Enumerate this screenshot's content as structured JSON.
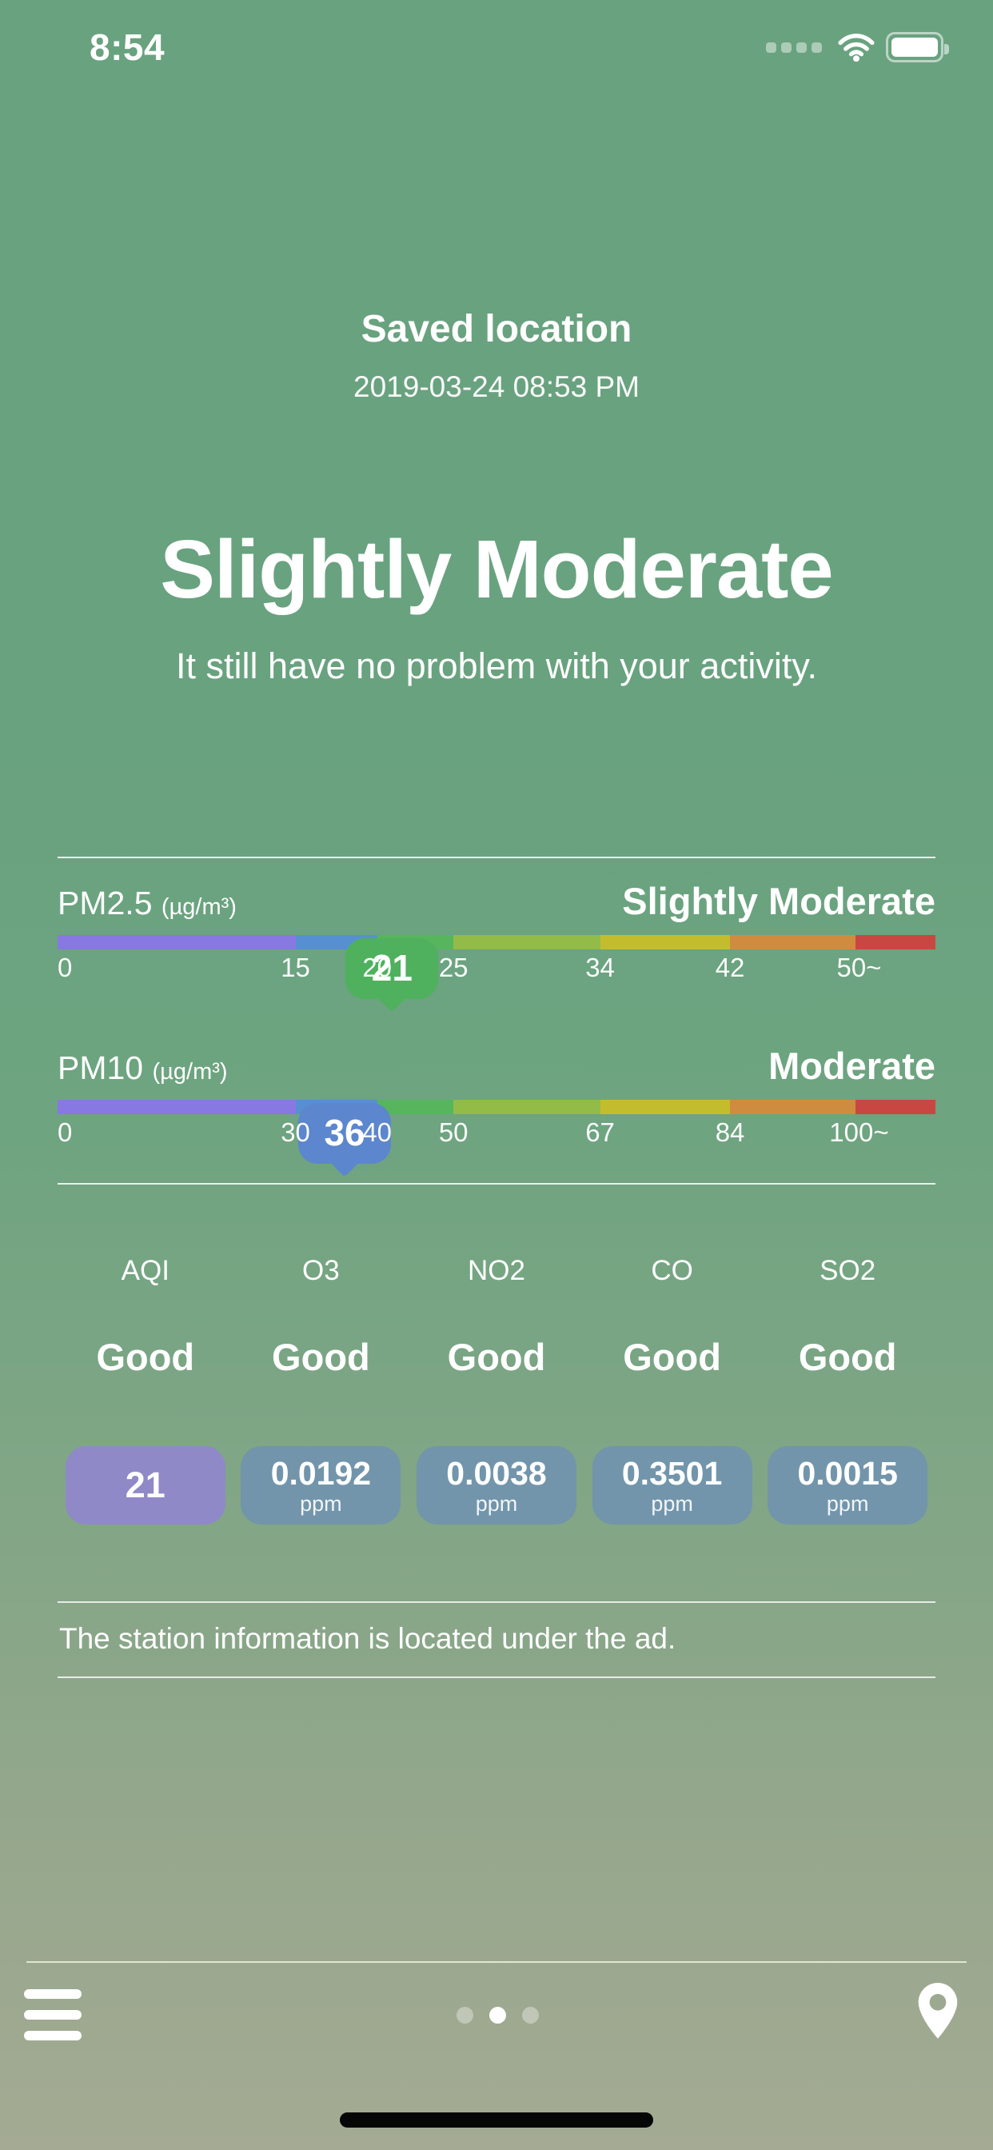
{
  "status_bar": {
    "time": "8:54"
  },
  "header": {
    "title": "Saved location",
    "timestamp": "2019-03-24 08:53 PM"
  },
  "summary": {
    "level": "Slightly Moderate",
    "message": "It still have no problem with your activity."
  },
  "colors": {
    "background_top": "#69a27f",
    "background_bottom": "#a4aa93",
    "divider": "#ffffff",
    "aqi_pill": "#8f89c8",
    "value_pill": "#7295ab",
    "pm25_badge": "#4fb15e",
    "pm10_badge": "#5c86cd",
    "home_indicator": "#060606"
  },
  "gauges": [
    {
      "label": "PM2.5",
      "unit": "(µg/m³)",
      "status": "Slightly Moderate",
      "value": "21",
      "badge_color": "#4fb15e",
      "badge_percent": 38.1,
      "segments": [
        {
          "color": "#8878e2",
          "percent": 27.1
        },
        {
          "color": "#578fd3",
          "percent": 9.3
        },
        {
          "color": "#57b55e",
          "percent": 8.7
        },
        {
          "color": "#92bb47",
          "percent": 16.7
        },
        {
          "color": "#c3bd2e",
          "percent": 14.8
        },
        {
          "color": "#d08c3e",
          "percent": 14.3
        },
        {
          "color": "#c94743",
          "percent": 9.1
        }
      ],
      "ticks": [
        {
          "label": "0",
          "percent": 0
        },
        {
          "label": "15",
          "percent": 27.1
        },
        {
          "label": "20",
          "percent": 36.4
        },
        {
          "label": "25",
          "percent": 45.1
        },
        {
          "label": "34",
          "percent": 61.8
        },
        {
          "label": "42",
          "percent": 76.6
        },
        {
          "label": "50~",
          "percent": 91.3
        }
      ]
    },
    {
      "label": "PM10",
      "unit": "(µg/m³)",
      "status": "Moderate",
      "value": "36",
      "badge_color": "#5c86cd",
      "badge_percent": 32.7,
      "segments": [
        {
          "color": "#8878e2",
          "percent": 27.1
        },
        {
          "color": "#578fd3",
          "percent": 9.3
        },
        {
          "color": "#57b55e",
          "percent": 8.7
        },
        {
          "color": "#92bb47",
          "percent": 16.7
        },
        {
          "color": "#c3bd2e",
          "percent": 14.8
        },
        {
          "color": "#d08c3e",
          "percent": 14.3
        },
        {
          "color": "#c94743",
          "percent": 9.1
        }
      ],
      "ticks": [
        {
          "label": "0",
          "percent": 0
        },
        {
          "label": "30",
          "percent": 27.1
        },
        {
          "label": "40",
          "percent": 36.4
        },
        {
          "label": "50",
          "percent": 45.1
        },
        {
          "label": "67",
          "percent": 61.8
        },
        {
          "label": "84",
          "percent": 76.6
        },
        {
          "label": "100~",
          "percent": 91.3
        }
      ]
    }
  ],
  "pollutants": [
    {
      "name": "AQI",
      "status": "Good",
      "value": "21",
      "unit": "",
      "accent": "#8f89c8"
    },
    {
      "name": "O3",
      "status": "Good",
      "value": "0.0192",
      "unit": "ppm",
      "accent": "#7295ab"
    },
    {
      "name": "NO2",
      "status": "Good",
      "value": "0.0038",
      "unit": "ppm",
      "accent": "#7295ab"
    },
    {
      "name": "CO",
      "status": "Good",
      "value": "0.3501",
      "unit": "ppm",
      "accent": "#7295ab"
    },
    {
      "name": "SO2",
      "status": "Good",
      "value": "0.0015",
      "unit": "ppm",
      "accent": "#7295ab"
    }
  ],
  "notice": "The station information is located under the ad.",
  "pagination": {
    "total": 3,
    "active": 1
  }
}
